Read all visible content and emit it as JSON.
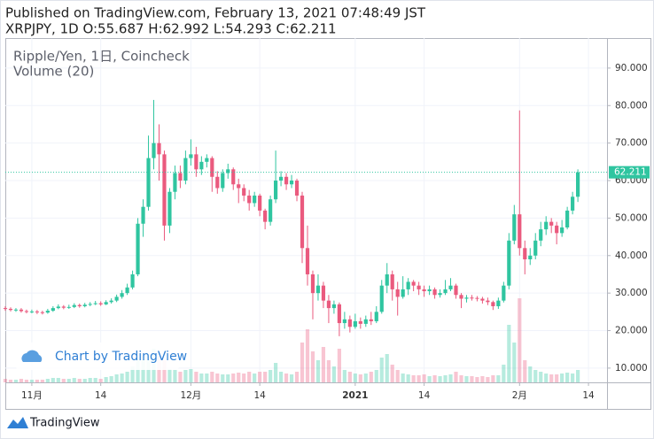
{
  "header": {
    "line1": "Published on TradingView.com, February 13, 2021 07:48:49 JST",
    "line2": "XRPJPY, 1D O:55.687 H:62.992 L:54.293 C:62.211"
  },
  "watermark": "Chart by TradingView",
  "footer": "TradingView",
  "chart_data": {
    "type": "candlestick",
    "title": "Ripple/Yen, 1日, Coincheck",
    "volume_title": "Volume (20)",
    "x": [
      -5,
      -4,
      -3,
      -2,
      -1,
      0,
      1,
      2,
      3,
      4,
      5,
      6,
      7,
      8,
      9,
      10,
      11,
      12,
      13,
      14,
      15,
      16,
      17,
      18,
      19,
      20,
      21,
      22,
      23,
      24,
      25,
      26,
      27,
      28,
      29,
      30,
      31,
      32,
      33,
      34,
      35,
      36,
      37,
      38,
      39,
      40,
      41,
      42,
      43,
      44,
      45,
      46,
      47,
      48,
      49,
      50,
      51,
      52,
      53,
      54,
      55,
      56,
      57,
      58,
      59,
      60,
      61,
      62,
      63,
      64,
      65,
      66,
      67,
      68,
      69,
      70,
      71,
      72,
      73,
      74,
      75,
      76,
      77,
      78,
      79,
      80,
      81,
      82,
      83,
      84,
      85,
      86,
      87,
      88,
      89,
      90,
      91,
      92,
      93,
      94,
      95,
      96,
      97,
      98,
      99,
      100,
      101,
      102,
      103
    ],
    "open": [
      26.0,
      25.8,
      25.5,
      25.6,
      25.2,
      25.0,
      25.1,
      24.9,
      24.8,
      25.3,
      26.0,
      26.4,
      26.1,
      26.3,
      26.8,
      26.5,
      26.9,
      27.1,
      27.3,
      27.0,
      27.6,
      28.0,
      29.0,
      30.0,
      31.5,
      35.0,
      48.5,
      53.0,
      66.0,
      70.0,
      67.0,
      48.0,
      57.0,
      62.0,
      60.0,
      66.0,
      67.0,
      63.0,
      65.0,
      66.0,
      61.0,
      58.0,
      62.0,
      63.0,
      59.0,
      58.0,
      56.0,
      54.0,
      56.0,
      52.0,
      49.0,
      55.0,
      60.0,
      61.0,
      59.0,
      60.0,
      56.0,
      42.0,
      35.0,
      30.0,
      32.0,
      28.0,
      26.0,
      27.0,
      22.0,
      23.0,
      21.0,
      22.5,
      21.8,
      23.0,
      22.5,
      25.0,
      32.0,
      35.0,
      31.0,
      29.0,
      31.0,
      33.0,
      32.0,
      31.0,
      30.5,
      31.0,
      29.5,
      30.0,
      31.0,
      32.0,
      29.5,
      28.5,
      28.8,
      28.7,
      28.5,
      28.0,
      27.6,
      26.5,
      28.0,
      32.0,
      44.0,
      51.0,
      42.0,
      39.0,
      40.0,
      44.0,
      47.0,
      49.0,
      48.0,
      46.0,
      47.5,
      52.0,
      55.687
    ],
    "high": [
      26.5,
      26.2,
      26.0,
      26.0,
      25.6,
      25.6,
      25.5,
      25.3,
      25.8,
      26.5,
      27.0,
      26.8,
      26.9,
      27.3,
      27.2,
      27.4,
      27.6,
      27.9,
      27.8,
      28.1,
      28.6,
      29.6,
      30.8,
      32.5,
      36.0,
      50.0,
      55.0,
      72.0,
      81.5,
      75.0,
      68.0,
      58.0,
      64.0,
      64.0,
      68.0,
      71.0,
      69.0,
      66.5,
      67.0,
      66.5,
      62.5,
      63.0,
      64.5,
      63.5,
      60.5,
      59.0,
      57.5,
      57.0,
      56.5,
      52.5,
      56.0,
      68.0,
      62.5,
      62.0,
      61.5,
      60.5,
      57.0,
      48.0,
      36.0,
      35.0,
      33.0,
      29.5,
      28.0,
      27.5,
      25.0,
      24.0,
      24.5,
      23.5,
      24.0,
      25.0,
      26.5,
      33.5,
      38.0,
      36.0,
      33.0,
      34.5,
      34.0,
      33.5,
      33.0,
      32.0,
      32.0,
      31.5,
      31.0,
      33.5,
      34.0,
      32.5,
      30.0,
      29.5,
      29.5,
      29.2,
      29.0,
      28.8,
      28.0,
      28.8,
      33.0,
      46.0,
      53.5,
      78.7,
      44.0,
      42.0,
      46.0,
      49.0,
      50.5,
      50.0,
      49.0,
      49.5,
      53.0,
      57.0,
      62.992
    ],
    "low": [
      25.3,
      25.1,
      25.0,
      24.8,
      24.6,
      24.6,
      24.4,
      24.3,
      24.5,
      25.0,
      25.7,
      25.7,
      25.8,
      26.0,
      26.1,
      26.2,
      26.5,
      26.8,
      26.6,
      26.8,
      27.2,
      27.6,
      28.5,
      29.5,
      31.0,
      34.5,
      45.0,
      52.0,
      63.0,
      60.0,
      44.0,
      46.0,
      55.0,
      58.0,
      59.0,
      64.0,
      61.0,
      61.5,
      63.5,
      57.0,
      56.5,
      57.0,
      60.5,
      57.5,
      54.0,
      54.5,
      52.0,
      53.0,
      50.5,
      47.0,
      48.0,
      54.0,
      58.5,
      57.5,
      58.0,
      54.5,
      38.0,
      32.0,
      23.0,
      28.0,
      26.0,
      22.0,
      24.5,
      18.5,
      20.5,
      19.5,
      20.5,
      20.5,
      21.0,
      21.5,
      22.0,
      24.5,
      30.0,
      28.0,
      24.0,
      28.5,
      29.5,
      30.5,
      29.5,
      29.0,
      29.5,
      28.5,
      28.8,
      29.5,
      30.5,
      28.5,
      26.0,
      27.5,
      28.0,
      27.8,
      27.2,
      26.8,
      25.5,
      25.8,
      27.5,
      31.0,
      43.0,
      40.0,
      35.0,
      37.5,
      39.0,
      42.5,
      45.5,
      46.0,
      43.0,
      45.0,
      47.0,
      51.0,
      54.293
    ],
    "close": [
      25.8,
      25.5,
      25.6,
      25.2,
      25.0,
      25.1,
      24.9,
      24.8,
      25.3,
      26.0,
      26.4,
      26.1,
      26.3,
      26.8,
      26.5,
      26.9,
      27.1,
      27.3,
      27.0,
      27.6,
      28.0,
      29.0,
      30.0,
      31.5,
      35.0,
      48.5,
      53.0,
      66.0,
      70.0,
      67.0,
      48.0,
      57.0,
      62.0,
      60.0,
      66.0,
      67.0,
      63.0,
      65.0,
      66.0,
      61.0,
      58.0,
      62.0,
      63.0,
      59.0,
      58.0,
      56.0,
      54.0,
      56.0,
      52.0,
      49.0,
      55.0,
      60.0,
      61.0,
      59.0,
      60.0,
      56.0,
      42.0,
      35.0,
      30.0,
      32.0,
      28.0,
      26.0,
      27.0,
      22.0,
      23.0,
      21.0,
      22.5,
      21.8,
      23.0,
      22.5,
      25.0,
      32.0,
      35.0,
      31.0,
      29.0,
      31.0,
      33.0,
      32.0,
      31.0,
      30.5,
      31.0,
      29.5,
      30.0,
      31.0,
      32.0,
      29.5,
      28.5,
      28.8,
      28.7,
      28.5,
      28.0,
      27.6,
      26.5,
      28.0,
      32.0,
      44.0,
      51.0,
      42.0,
      39.0,
      40.0,
      44.0,
      47.0,
      49.0,
      48.0,
      46.0,
      47.5,
      52.0,
      55.687,
      62.211
    ],
    "volume": [
      4,
      3,
      3,
      4,
      3,
      3,
      3,
      3,
      4,
      5,
      5,
      4,
      4,
      5,
      4,
      4,
      5,
      5,
      4,
      6,
      7,
      9,
      10,
      12,
      18,
      28,
      30,
      32,
      38,
      30,
      25,
      15,
      14,
      12,
      14,
      15,
      12,
      10,
      10,
      12,
      10,
      9,
      9,
      10,
      11,
      10,
      12,
      10,
      12,
      12,
      14,
      22,
      12,
      10,
      9,
      12,
      45,
      60,
      35,
      25,
      40,
      25,
      18,
      38,
      14,
      12,
      10,
      9,
      10,
      12,
      14,
      28,
      32,
      20,
      14,
      10,
      9,
      8,
      8,
      9,
      7,
      8,
      7,
      8,
      9,
      12,
      8,
      7,
      7,
      6,
      7,
      6,
      8,
      8,
      20,
      65,
      45,
      95,
      25,
      18,
      14,
      12,
      10,
      9,
      9,
      10,
      11,
      10,
      14
    ],
    "up_color": "#2fc5a0",
    "down_color": "#ea5a7e",
    "xlim": [
      -5,
      108.5
    ],
    "xticks": [
      {
        "value": 0,
        "label": "11月"
      },
      {
        "value": 13,
        "label": "14"
      },
      {
        "value": 30,
        "label": "12月"
      },
      {
        "value": 43,
        "label": "14"
      },
      {
        "value": 61,
        "label": "2021"
      },
      {
        "value": 74,
        "label": "14"
      },
      {
        "value": 92,
        "label": "2月"
      },
      {
        "value": 105,
        "label": "14"
      }
    ],
    "ylim": [
      6.2,
      98
    ],
    "yticks": [
      {
        "value": 10,
        "label": "10.000"
      },
      {
        "value": 20,
        "label": "20.000"
      },
      {
        "value": 30,
        "label": "30.000"
      },
      {
        "value": 40,
        "label": "40.000"
      },
      {
        "value": 50,
        "label": "50.000"
      },
      {
        "value": 60,
        "label": "60.000"
      },
      {
        "value": 70,
        "label": "70.000"
      },
      {
        "value": 80,
        "label": "80.000"
      },
      {
        "value": 90,
        "label": "90.000"
      }
    ],
    "grid": true
  }
}
